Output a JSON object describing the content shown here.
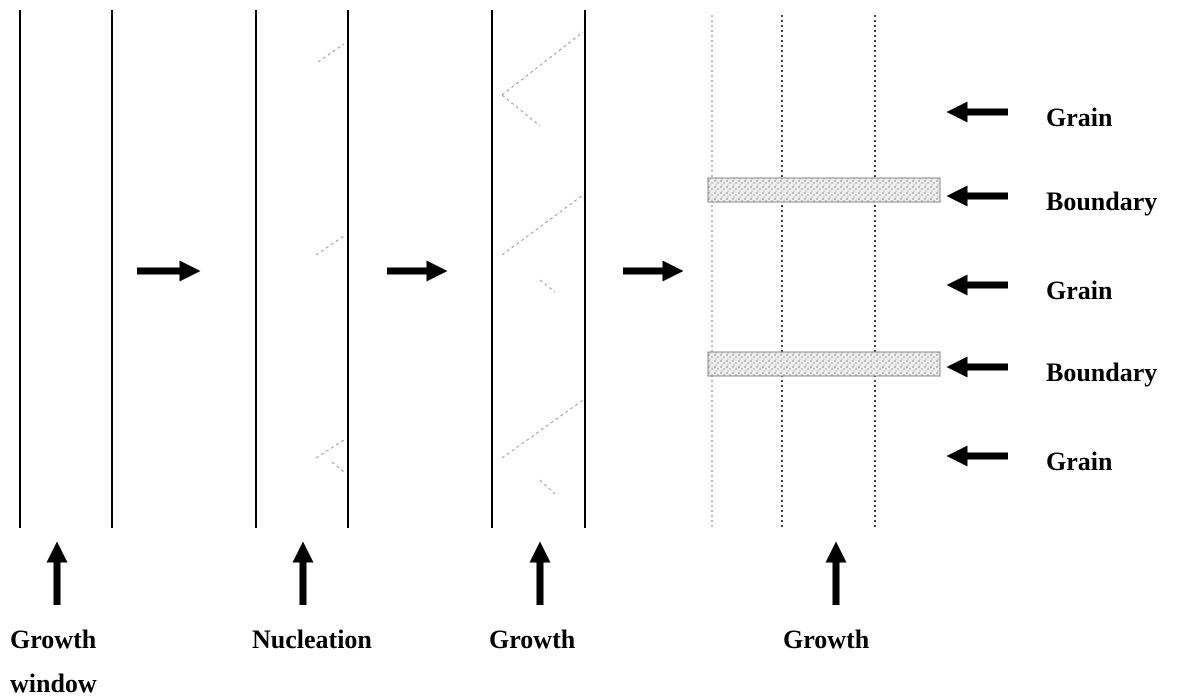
{
  "stages": [
    {
      "label": "Growth window"
    },
    {
      "label": "Nucleation"
    },
    {
      "label": "Growth"
    },
    {
      "label": "Growth"
    }
  ],
  "regions": [
    {
      "label": "Grain"
    },
    {
      "label": "Boundary"
    },
    {
      "label": "Grain"
    },
    {
      "label": "Boundary"
    },
    {
      "label": "Grain"
    }
  ]
}
